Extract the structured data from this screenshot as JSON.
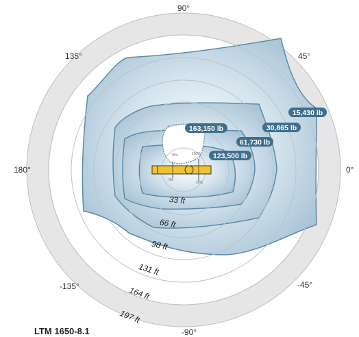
{
  "model": "LTM 1650-8.1",
  "angles": {
    "a90": "90°",
    "a45": "45°",
    "a0": "0°",
    "a_45": "-45°",
    "a_90": "-90°",
    "a_135": "-135°",
    "a180": "180°",
    "a135": "135°"
  },
  "distances": [
    "33 ft",
    "66 ft",
    "98 ft",
    "131 ft",
    "164 ft",
    "197 ft"
  ],
  "loads": [
    "163,150 lb",
    "123,500 lb",
    "61,730 lb",
    "30,865 lb",
    "15,430 lb"
  ],
  "support_percentages": [
    "75%",
    "100%",
    "0%",
    "25%"
  ],
  "colors": {
    "zone_fill": "#bcd3e2",
    "zone_edge": "#5d8aa8",
    "label_pill": "#3f6f8d",
    "ring": "#e6e6e6",
    "crane": "#f1c232"
  }
}
